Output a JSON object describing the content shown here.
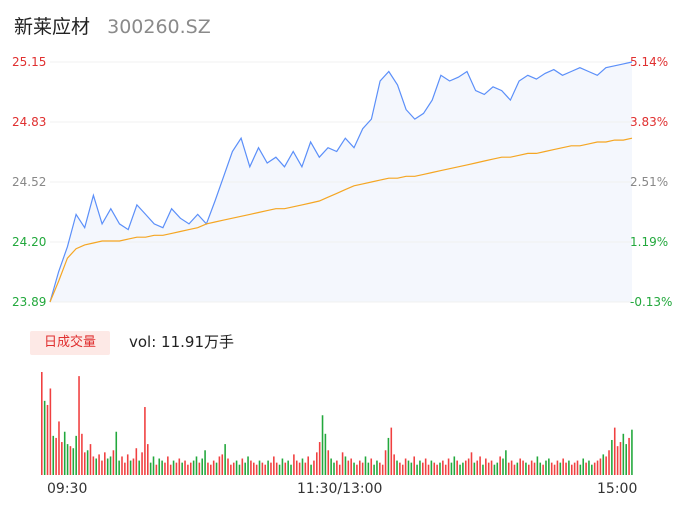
{
  "header": {
    "name": "新莱应材",
    "code": "300260.SZ"
  },
  "price_axis": [
    "25.15",
    "24.83",
    "24.52",
    "24.20",
    "23.89"
  ],
  "pct_axis": [
    "5.14%",
    "3.83%",
    "2.51%",
    "1.19%",
    "-0.13%"
  ],
  "volume": {
    "tab_label": "日成交量",
    "prefix": "vol: ",
    "value": "11.91万手"
  },
  "time_axis": [
    "09:30",
    "11:30/13:00",
    "15:00"
  ],
  "colors": {
    "price_line": "#5b8ff9",
    "avg_line": "#f5a623",
    "up": "#f04040",
    "down": "#22a83c",
    "area": "#f4f7fd"
  },
  "chart_data": [
    {
      "type": "line",
      "x_range": [
        "09:30",
        "15:00"
      ],
      "ylim": [
        23.89,
        25.15
      ],
      "series": [
        {
          "values": [
            23.89,
            24.05,
            24.18,
            24.35,
            24.28,
            24.45,
            24.3,
            24.38,
            24.3,
            24.27,
            24.4,
            24.35,
            24.3,
            24.28,
            24.38,
            24.33,
            24.3,
            24.35,
            24.3,
            24.42,
            24.55,
            24.68,
            24.75,
            24.6,
            24.7,
            24.62,
            24.65,
            24.6,
            24.68,
            24.6,
            24.73,
            24.65,
            24.7,
            24.68,
            24.75,
            24.7,
            24.8,
            24.85,
            25.05,
            25.1,
            25.03,
            24.9,
            24.85,
            24.88,
            24.95,
            25.08,
            25.05,
            25.07,
            25.1,
            25.0,
            24.98,
            25.02,
            25.0,
            24.95,
            25.05,
            25.08,
            25.06,
            25.09,
            25.11,
            25.08,
            25.1,
            25.12,
            25.1,
            25.08,
            25.12,
            25.13,
            25.14,
            25.15
          ]
        },
        {
          "values": [
            23.89,
            24.0,
            24.12,
            24.17,
            24.19,
            24.2,
            24.21,
            24.21,
            24.21,
            24.22,
            24.23,
            24.23,
            24.24,
            24.24,
            24.25,
            24.26,
            24.27,
            24.28,
            24.3,
            24.31,
            24.32,
            24.33,
            24.34,
            24.35,
            24.36,
            24.37,
            24.38,
            24.38,
            24.39,
            24.4,
            24.41,
            24.42,
            24.44,
            24.46,
            24.48,
            24.5,
            24.51,
            24.52,
            24.53,
            24.54,
            24.54,
            24.55,
            24.55,
            24.56,
            24.57,
            24.58,
            24.59,
            24.6,
            24.61,
            24.62,
            24.63,
            24.64,
            24.65,
            24.65,
            24.66,
            24.67,
            24.67,
            24.68,
            24.69,
            24.7,
            24.71,
            24.71,
            24.72,
            24.73,
            24.73,
            24.74,
            24.74,
            24.75
          ]
        }
      ]
    },
    {
      "type": "bar",
      "x_range": [
        "09:30",
        "15:00"
      ],
      "values": [
        100,
        72,
        68,
        84,
        38,
        36,
        52,
        32,
        42,
        30,
        28,
        26,
        38,
        96,
        40,
        22,
        24,
        30,
        18,
        16,
        20,
        14,
        22,
        16,
        18,
        24,
        42,
        14,
        18,
        12,
        20,
        14,
        16,
        26,
        14,
        22,
        66,
        30,
        12,
        18,
        10,
        16,
        14,
        12,
        18,
        10,
        14,
        12,
        16,
        12,
        14,
        10,
        12,
        14,
        18,
        12,
        16,
        24,
        12,
        10,
        14,
        12,
        18,
        20,
        30,
        16,
        10,
        12,
        14,
        10,
        16,
        12,
        18,
        14,
        12,
        10,
        14,
        12,
        10,
        14,
        12,
        18,
        12,
        10,
        16,
        12,
        14,
        10,
        20,
        14,
        12,
        16,
        12,
        18,
        10,
        14,
        22,
        32,
        58,
        40,
        24,
        16,
        12,
        14,
        10,
        22,
        18,
        14,
        16,
        12,
        10,
        14,
        12,
        18,
        12,
        16,
        10,
        14,
        12,
        10,
        24,
        36,
        46,
        20,
        14,
        12,
        10,
        16,
        14,
        12,
        18,
        10,
        14,
        12,
        16,
        10,
        14,
        12,
        10,
        12,
        14,
        10,
        16,
        12,
        18,
        14,
        10,
        12,
        14,
        16,
        22,
        12,
        14,
        18,
        10,
        16,
        12,
        14,
        10,
        12,
        18,
        16,
        24,
        12,
        14,
        10,
        12,
        16,
        14,
        12,
        10,
        14,
        12,
        18,
        12,
        10,
        14,
        16,
        12,
        10,
        14,
        12,
        16,
        12,
        14,
        10,
        12,
        14,
        10,
        16,
        12,
        14,
        10,
        12,
        14,
        16,
        20,
        18,
        24,
        34,
        46,
        28,
        32,
        40,
        30,
        36,
        44
      ]
    }
  ]
}
